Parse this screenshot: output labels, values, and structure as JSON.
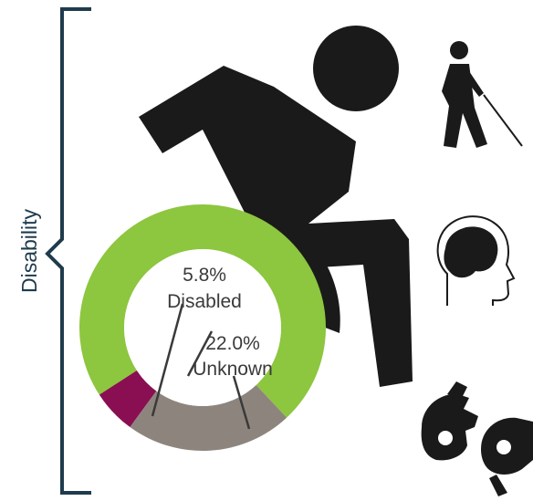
{
  "chart_data": {
    "type": "pie",
    "variant": "donut",
    "title": "",
    "group_label": "Disability",
    "slices": [
      {
        "name": "Disabled",
        "value": 5.8,
        "label": "5.8%",
        "color": "#8a0f52"
      },
      {
        "name": "Unknown",
        "value": 22.0,
        "label": "22.0%",
        "color": "#8d857d"
      },
      {
        "name": "",
        "value": 72.2,
        "color": "#8dc63f"
      }
    ]
  },
  "colors": {
    "figure": "#1a1a1a",
    "bracket": "#1f3b4d",
    "hole": "#ffffff",
    "leader": "#3a3a3a"
  },
  "icons": [
    "wheelchair-runner-icon",
    "blind-cane-icon",
    "brain-head-icon",
    "sign-language-hands-icon"
  ]
}
